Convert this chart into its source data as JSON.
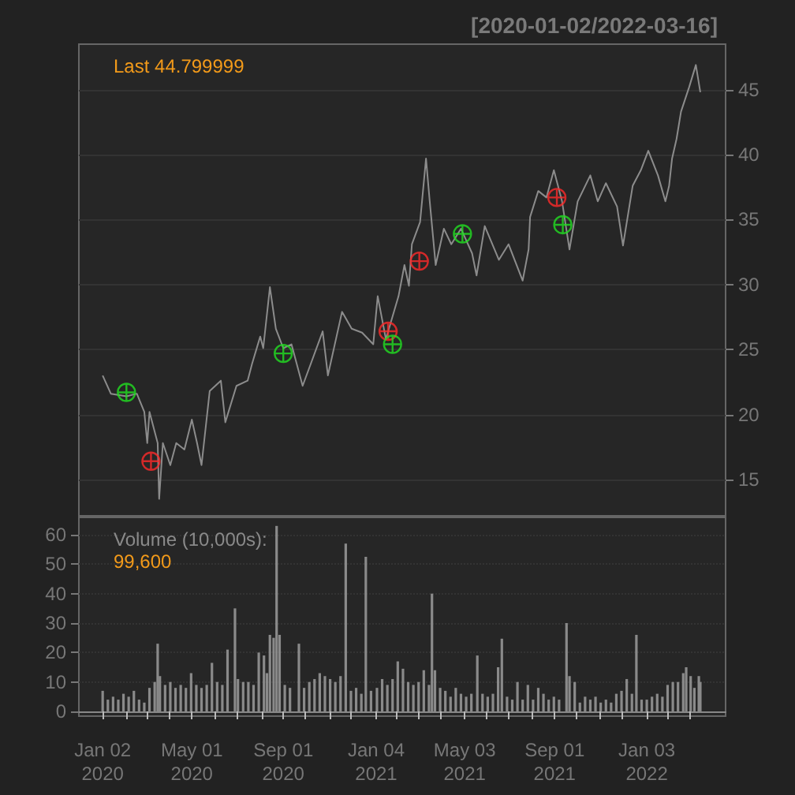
{
  "chart_data": [
    {
      "type": "line",
      "title": "[2020-01-02/2022-03-16]",
      "annotations": [
        "Last 44.799999"
      ],
      "xlim": [
        "2019-12-01",
        "2022-04-19"
      ],
      "ylim": [
        12.2,
        48.5
      ],
      "yticks": [
        15,
        20,
        25,
        30,
        35,
        40,
        45
      ],
      "grid": "y",
      "tick_labels": "y",
      "series": [
        {
          "color": "#8c8c8c",
          "marker": "none",
          "x": [
            "2020-01-02",
            "2020-01-13",
            "2020-02-03",
            "2020-02-17",
            "2020-02-27",
            "2020-03-02",
            "2020-03-05",
            "2020-03-16",
            "2020-03-18",
            "2020-03-23",
            "2020-04-02",
            "2020-04-10",
            "2020-04-21",
            "2020-05-01",
            "2020-05-08",
            "2020-05-14",
            "2020-05-25",
            "2020-06-09",
            "2020-06-15",
            "2020-06-30",
            "2020-07-15",
            "2020-07-21",
            "2020-08-01",
            "2020-08-05",
            "2020-08-14",
            "2020-08-22",
            "2020-09-01",
            "2020-09-12",
            "2020-09-27",
            "2020-10-08",
            "2020-10-24",
            "2020-10-31",
            "2020-11-19",
            "2020-12-02",
            "2020-12-16",
            "2020-12-31",
            "2021-01-06",
            "2021-01-17",
            "2021-02-03",
            "2021-02-11",
            "2021-02-17",
            "2021-02-21",
            "2021-03-04",
            "2021-03-12",
            "2021-03-17",
            "2021-03-25",
            "2021-04-05",
            "2021-04-15",
            "2021-04-28",
            "2021-05-13",
            "2021-05-19",
            "2021-05-30",
            "2021-06-18",
            "2021-07-01",
            "2021-07-20",
            "2021-07-28",
            "2021-07-30",
            "2021-08-10",
            "2021-08-21",
            "2021-08-31",
            "2021-09-11",
            "2021-09-21",
            "2021-10-02",
            "2021-10-19",
            "2021-10-29",
            "2021-11-09",
            "2021-11-24",
            "2021-12-02",
            "2021-12-15",
            "2021-12-26",
            "2022-01-05",
            "2022-01-18",
            "2022-01-28",
            "2022-02-02",
            "2022-02-06",
            "2022-02-12",
            "2022-02-18",
            "2022-03-01",
            "2022-03-10",
            "2022-03-16"
          ],
          "values": [
            23.0,
            21.6,
            21.4,
            21.6,
            20.2,
            17.8,
            20.2,
            17.8,
            13.5,
            17.8,
            16.1,
            17.8,
            17.3,
            19.6,
            17.8,
            16.1,
            21.8,
            22.6,
            19.4,
            22.2,
            22.6,
            23.9,
            26.0,
            25.1,
            29.8,
            26.6,
            25.1,
            25.4,
            22.2,
            23.9,
            26.4,
            23.0,
            27.9,
            26.6,
            26.3,
            25.4,
            29.1,
            25.8,
            29.1,
            31.5,
            29.9,
            33.1,
            34.8,
            39.7,
            36.4,
            31.5,
            34.3,
            33.1,
            34.3,
            32.4,
            30.7,
            34.5,
            31.9,
            33.1,
            30.3,
            32.7,
            35.2,
            37.2,
            36.7,
            38.8,
            36.4,
            32.7,
            36.4,
            38.4,
            36.4,
            37.8,
            36.0,
            33.0,
            37.6,
            38.8,
            40.3,
            38.4,
            36.4,
            37.6,
            39.7,
            41.2,
            43.3,
            45.2,
            46.9,
            44.8
          ]
        },
        {
          "type": "scatter",
          "color": "#ff2a2a",
          "marker": "cross",
          "x": [
            "2020-03-07",
            "2021-01-20",
            "2021-03-03",
            "2021-09-04"
          ],
          "values": [
            16.4,
            26.4,
            31.8,
            36.7
          ]
        },
        {
          "type": "scatter",
          "color": "#22e022",
          "marker": "cross",
          "x": [
            "2020-02-03",
            "2020-09-01",
            "2021-01-26",
            "2021-04-30",
            "2021-09-12"
          ],
          "values": [
            21.7,
            24.7,
            25.4,
            33.9,
            34.6
          ]
        }
      ]
    },
    {
      "type": "bar",
      "annotations": [
        "Volume (10,000s):",
        "99,600"
      ],
      "xlim": [
        "2019-12-01",
        "2022-04-19"
      ],
      "ylim": [
        -1.6,
        65.9
      ],
      "yticks": [
        0,
        10,
        20,
        30,
        40,
        50,
        60
      ],
      "grid": "y",
      "color": "#8a8a8a",
      "xticks": [
        {
          "value": "2020-01-02",
          "label": "Jan 02 2020"
        },
        {
          "value": "2020-02-03",
          "label": null
        },
        {
          "value": "2020-03-02",
          "label": null
        },
        {
          "value": "2020-04-01",
          "label": null
        },
        {
          "value": "2020-05-01",
          "label": "May 01 2020"
        },
        {
          "value": "2020-06-01",
          "label": null
        },
        {
          "value": "2020-07-01",
          "label": null
        },
        {
          "value": "2020-08-03",
          "label": null
        },
        {
          "value": "2020-09-01",
          "label": "Sep 01 2020"
        },
        {
          "value": "2020-10-01",
          "label": null
        },
        {
          "value": "2020-11-02",
          "label": null
        },
        {
          "value": "2020-12-01",
          "label": null
        },
        {
          "value": "2021-01-04",
          "label": "Jan 04 2021"
        },
        {
          "value": "2021-02-01",
          "label": null
        },
        {
          "value": "2021-03-01",
          "label": null
        },
        {
          "value": "2021-04-01",
          "label": null
        },
        {
          "value": "2021-05-03",
          "label": "May 03 2021"
        },
        {
          "value": "2021-06-01",
          "label": null
        },
        {
          "value": "2021-07-01",
          "label": null
        },
        {
          "value": "2021-08-02",
          "label": null
        },
        {
          "value": "2021-09-01",
          "label": "Sep 01 2021"
        },
        {
          "value": "2021-10-01",
          "label": null
        },
        {
          "value": "2021-11-01",
          "label": null
        },
        {
          "value": "2021-12-01",
          "label": null
        },
        {
          "value": "2022-01-03",
          "label": "Jan 03 2022"
        },
        {
          "value": "2022-02-01",
          "label": null
        },
        {
          "value": "2022-03-01",
          "label": null
        }
      ],
      "x": [
        "2020-01-02",
        "2020-01-09",
        "2020-01-16",
        "2020-01-23",
        "2020-01-30",
        "2020-02-06",
        "2020-02-13",
        "2020-02-20",
        "2020-02-27",
        "2020-03-05",
        "2020-03-12",
        "2020-03-16",
        "2020-03-19",
        "2020-03-26",
        "2020-04-02",
        "2020-04-09",
        "2020-04-16",
        "2020-04-23",
        "2020-04-30",
        "2020-05-07",
        "2020-05-14",
        "2020-05-21",
        "2020-05-28",
        "2020-06-04",
        "2020-06-11",
        "2020-06-18",
        "2020-06-28",
        "2020-07-02",
        "2020-07-09",
        "2020-07-16",
        "2020-07-23",
        "2020-07-30",
        "2020-08-06",
        "2020-08-10",
        "2020-08-14",
        "2020-08-19",
        "2020-08-23",
        "2020-08-27",
        "2020-09-03",
        "2020-09-10",
        "2020-09-22",
        "2020-09-29",
        "2020-10-06",
        "2020-10-13",
        "2020-10-20",
        "2020-10-27",
        "2020-11-03",
        "2020-11-10",
        "2020-11-17",
        "2020-11-24",
        "2020-12-01",
        "2020-12-08",
        "2020-12-15",
        "2020-12-21",
        "2020-12-28",
        "2021-01-05",
        "2021-01-12",
        "2021-01-19",
        "2021-01-26",
        "2021-02-02",
        "2021-02-09",
        "2021-02-16",
        "2021-02-23",
        "2021-03-02",
        "2021-03-09",
        "2021-03-16",
        "2021-03-20",
        "2021-03-24",
        "2021-03-31",
        "2021-04-07",
        "2021-04-14",
        "2021-04-21",
        "2021-04-28",
        "2021-05-05",
        "2021-05-12",
        "2021-05-20",
        "2021-05-27",
        "2021-06-03",
        "2021-06-10",
        "2021-06-17",
        "2021-06-22",
        "2021-06-29",
        "2021-07-06",
        "2021-07-13",
        "2021-07-20",
        "2021-07-27",
        "2021-08-03",
        "2021-08-10",
        "2021-08-17",
        "2021-08-24",
        "2021-08-31",
        "2021-09-07",
        "2021-09-17",
        "2021-09-21",
        "2021-09-28",
        "2021-10-05",
        "2021-10-12",
        "2021-10-19",
        "2021-10-26",
        "2021-11-02",
        "2021-11-09",
        "2021-11-16",
        "2021-11-23",
        "2021-11-30",
        "2021-12-07",
        "2021-12-14",
        "2021-12-20",
        "2021-12-27",
        "2022-01-03",
        "2022-01-10",
        "2022-01-17",
        "2022-01-24",
        "2022-01-31",
        "2022-02-07",
        "2022-02-14",
        "2022-02-21",
        "2022-02-25",
        "2022-03-03",
        "2022-03-08",
        "2022-03-14",
        "2022-03-16"
      ],
      "values": [
        7,
        4,
        5,
        4,
        6,
        5,
        7,
        4,
        3,
        8,
        10,
        23,
        12,
        9,
        10,
        8,
        9,
        8,
        13,
        9,
        8,
        9,
        16.5,
        10,
        9,
        21,
        35,
        11,
        10,
        10,
        9,
        20,
        19,
        13,
        26,
        25,
        63,
        26,
        9,
        8,
        23,
        8,
        10,
        11,
        13,
        12,
        11,
        10,
        12,
        57,
        7,
        8,
        6,
        52.5,
        7,
        8,
        11,
        9,
        11,
        17,
        14.5,
        10,
        9,
        10,
        14,
        9,
        40,
        14,
        8,
        7,
        5,
        8,
        6,
        5,
        6,
        19,
        6,
        5,
        6,
        15,
        24.7,
        5,
        4,
        10,
        4,
        9,
        4,
        8,
        6,
        4,
        5,
        4,
        30,
        12,
        10,
        3,
        5,
        4,
        5,
        3,
        4,
        3,
        6,
        7,
        11,
        6,
        26,
        4,
        4,
        5,
        6,
        5,
        9,
        10,
        10,
        13,
        15,
        12,
        8,
        12,
        10
      ]
    }
  ]
}
